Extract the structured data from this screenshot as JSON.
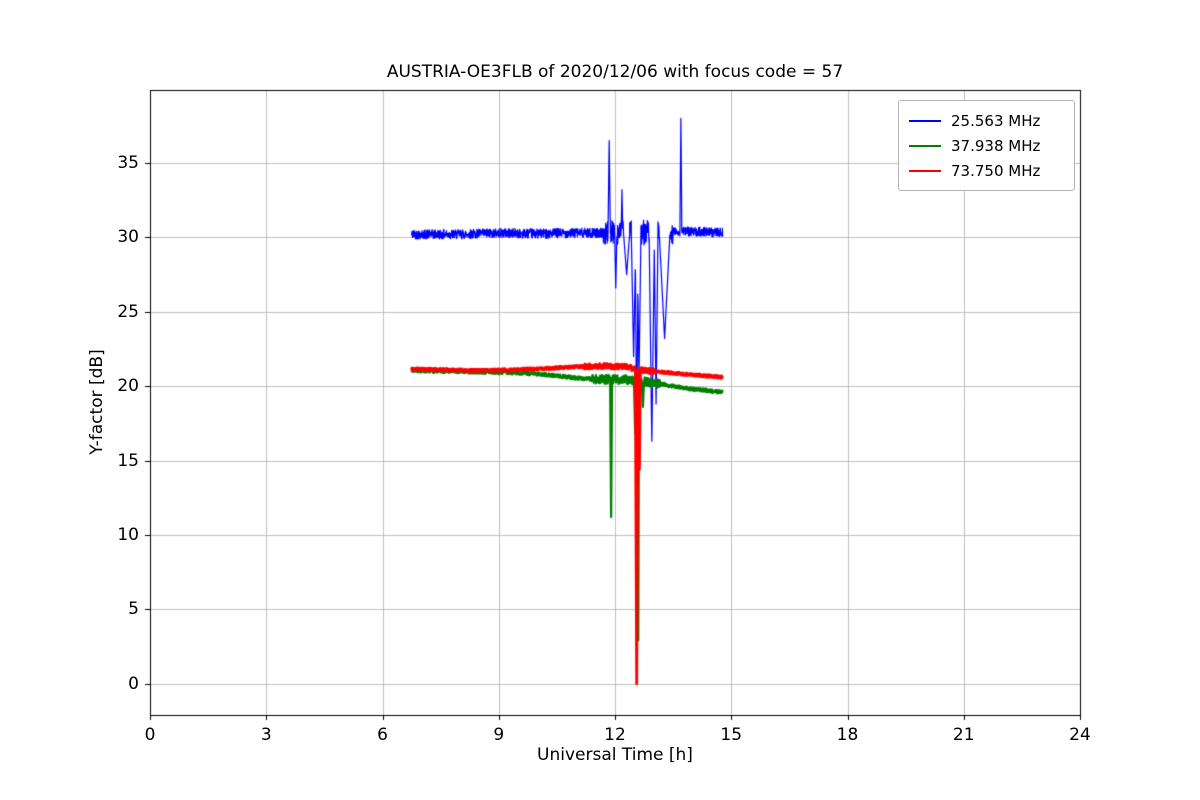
{
  "chart_data": {
    "type": "line",
    "title": "AUSTRIA-OE3FLB of 2020/12/06 with focus code = 57",
    "xlabel": "Universal Time [h]",
    "ylabel": "Y-factor [dB]",
    "xlim": [
      0,
      24
    ],
    "ylim": [
      -2.1,
      39.9
    ],
    "xticks": [
      0,
      3,
      6,
      9,
      12,
      15,
      18,
      21,
      24
    ],
    "yticks": [
      0,
      5,
      10,
      15,
      20,
      25,
      30,
      35
    ],
    "grid": true,
    "grid_color": "#b0b0b0",
    "axes_color": "#000000",
    "legend_position": "upper right",
    "series": [
      {
        "name": "25.563 MHz",
        "color": "#0000ff",
        "line_width": 1.2,
        "x_start": 6.75,
        "x_end": 14.78,
        "step": 0.006,
        "seed": 42,
        "noise": 0.32,
        "noise_zones": [
          {
            "x0": 11.7,
            "x1": 13.5,
            "amp": 0.85
          }
        ],
        "base": [
          [
            6.75,
            30.2
          ],
          [
            8,
            30.2
          ],
          [
            9,
            30.3
          ],
          [
            10,
            30.25
          ],
          [
            11,
            30.3
          ],
          [
            12,
            30.3
          ],
          [
            13,
            30.35
          ],
          [
            14,
            30.4
          ],
          [
            14.78,
            30.3
          ]
        ],
        "spikes": [
          {
            "x": 11.85,
            "y": 36.5,
            "w": 0.03,
            "dir": "up"
          },
          {
            "x": 12.02,
            "y": 26.6,
            "w": 0.03,
            "dir": "down"
          },
          {
            "x": 12.18,
            "y": 33.2,
            "w": 0.02,
            "dir": "up"
          },
          {
            "x": 12.3,
            "y": 27.5,
            "w": 0.08,
            "dir": "down"
          },
          {
            "x": 12.48,
            "y": 22.0,
            "w": 0.06,
            "dir": "down"
          },
          {
            "x": 12.56,
            "y": 16.5,
            "w": 0.04,
            "dir": "down"
          },
          {
            "x": 12.62,
            "y": 20.5,
            "w": 0.05,
            "dir": "down"
          },
          {
            "x": 12.95,
            "y": 16.3,
            "w": 0.07,
            "dir": "down"
          },
          {
            "x": 13.06,
            "y": 18.8,
            "w": 0.05,
            "dir": "down"
          },
          {
            "x": 13.28,
            "y": 23.2,
            "w": 0.14,
            "dir": "down"
          },
          {
            "x": 13.7,
            "y": 38.0,
            "w": 0.025,
            "dir": "up"
          }
        ]
      },
      {
        "name": "37.938 MHz",
        "color": "#008000",
        "line_width": 2.2,
        "x_start": 6.75,
        "x_end": 14.78,
        "step": 0.006,
        "seed": 7,
        "noise": 0.12,
        "noise_zones": [
          {
            "x0": 11.4,
            "x1": 13.2,
            "amp": 0.3
          }
        ],
        "base": [
          [
            6.75,
            21.05
          ],
          [
            7.5,
            21.0
          ],
          [
            8.5,
            20.95
          ],
          [
            9.5,
            20.9
          ],
          [
            10.3,
            20.75
          ],
          [
            11,
            20.55
          ],
          [
            11.6,
            20.45
          ],
          [
            12.2,
            20.45
          ],
          [
            12.8,
            20.3
          ],
          [
            13.4,
            20.05
          ],
          [
            14,
            19.8
          ],
          [
            14.78,
            19.6
          ]
        ],
        "spikes": [
          {
            "x": 11.9,
            "y": 11.2,
            "w": 0.025,
            "dir": "down"
          },
          {
            "x": 12.52,
            "y": 16.8,
            "w": 0.03,
            "dir": "down"
          },
          {
            "x": 12.6,
            "y": 2.9,
            "w": 0.02,
            "dir": "down"
          },
          {
            "x": 12.72,
            "y": 18.6,
            "w": 0.03,
            "dir": "down"
          }
        ]
      },
      {
        "name": "73.750 MHz",
        "color": "#ff0000",
        "line_width": 2.8,
        "x_start": 6.75,
        "x_end": 14.78,
        "step": 0.006,
        "seed": 99,
        "noise": 0.09,
        "noise_zones": [
          {
            "x0": 11.2,
            "x1": 13.0,
            "amp": 0.18
          }
        ],
        "base": [
          [
            6.75,
            21.15
          ],
          [
            7.5,
            21.1
          ],
          [
            8.5,
            21.05
          ],
          [
            9.5,
            21.1
          ],
          [
            10.3,
            21.2
          ],
          [
            11,
            21.3
          ],
          [
            11.7,
            21.35
          ],
          [
            12.3,
            21.3
          ],
          [
            12.7,
            21.05
          ],
          [
            13.2,
            20.95
          ],
          [
            13.8,
            20.8
          ],
          [
            14.78,
            20.6
          ]
        ],
        "spikes": [
          {
            "x": 12.56,
            "y": 0.0,
            "w": 0.035,
            "dir": "down"
          },
          {
            "x": 12.63,
            "y": 14.4,
            "w": 0.025,
            "dir": "down"
          }
        ]
      }
    ]
  }
}
